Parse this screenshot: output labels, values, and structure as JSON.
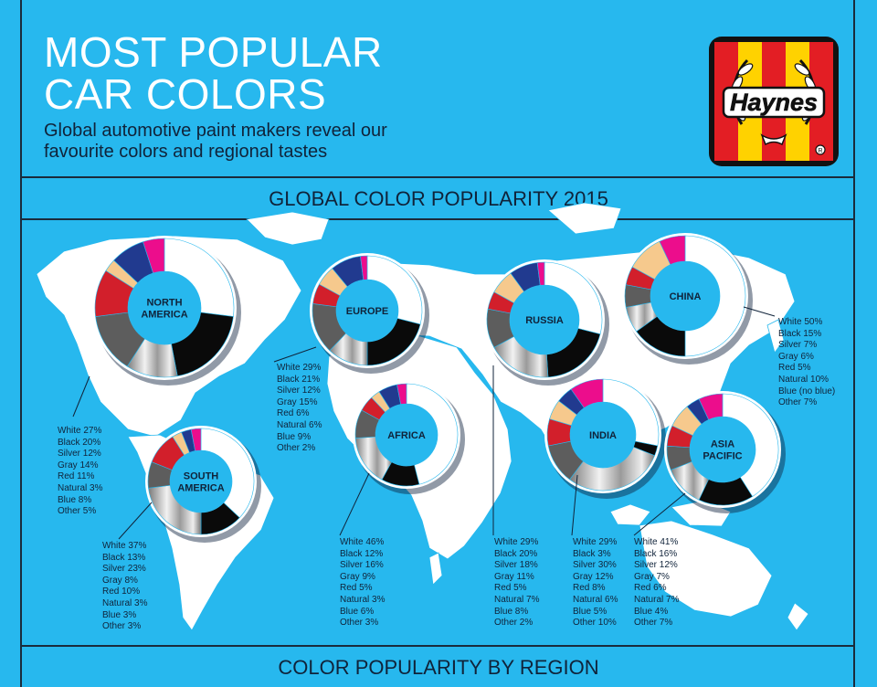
{
  "header": {
    "title_line1": "MOST POPULAR",
    "title_line2": "CAR COLORS",
    "subtitle_line1": "Global automotive paint makers reveal our",
    "subtitle_line2": "favourite colors and regional tastes",
    "logo_text": "Haynes"
  },
  "section1_title": "GLOBAL COLOR POPULARITY 2015",
  "section2_title": "COLOR POPULARITY BY REGION",
  "colors": {
    "background": "#27b8ee",
    "map_land": "#ffffff",
    "dark_text": "#10233a",
    "White": "#ffffff",
    "Black": "#0a0a0a",
    "Silver": "#c9c9c9",
    "Gray": "#5d5d5d",
    "Red": "#d21f2b",
    "Natural": "#f6c98d",
    "Blue": "#213a8f",
    "Other": "#ec0d8c"
  },
  "chart_data": [
    {
      "type": "pie",
      "region": "NORTH AMERICA",
      "categories": [
        "White",
        "Black",
        "Silver",
        "Gray",
        "Red",
        "Natural",
        "Blue",
        "Other"
      ],
      "values": [
        27,
        20,
        12,
        14,
        11,
        3,
        8,
        5
      ],
      "labels": [
        "White 27%",
        "Black 20%",
        "Silver 12%",
        "Gray 14%",
        "Red 11%",
        "Natural 3%",
        "Blue 8%",
        "Other 5%"
      ]
    },
    {
      "type": "pie",
      "region": "SOUTH AMERICA",
      "categories": [
        "White",
        "Black",
        "Silver",
        "Gray",
        "Red",
        "Natural",
        "Blue",
        "Other"
      ],
      "values": [
        37,
        13,
        23,
        8,
        10,
        3,
        3,
        3
      ],
      "labels": [
        "White 37%",
        "Black 13%",
        "Silver 23%",
        "Gray 8%",
        "Red 10%",
        "Natural 3%",
        "Blue 3%",
        "Other 3%"
      ]
    },
    {
      "type": "pie",
      "region": "EUROPE",
      "categories": [
        "White",
        "Black",
        "Silver",
        "Gray",
        "Red",
        "Natural",
        "Blue",
        "Other"
      ],
      "values": [
        29,
        21,
        12,
        15,
        6,
        6,
        9,
        2
      ],
      "labels": [
        "White 29%",
        "Black 21%",
        "Silver 12%",
        "Gray 15%",
        "Red 6%",
        "Natural 6%",
        "Blue 9%",
        "Other 2%"
      ]
    },
    {
      "type": "pie",
      "region": "AFRICA",
      "categories": [
        "White",
        "Black",
        "Silver",
        "Gray",
        "Red",
        "Natural",
        "Blue",
        "Other"
      ],
      "values": [
        46,
        12,
        16,
        9,
        5,
        3,
        6,
        3
      ],
      "labels": [
        "White 46%",
        "Black 12%",
        "Silver 16%",
        "Gray 9%",
        "Red 5%",
        "Natural 3%",
        "Blue 6%",
        "Other 3%"
      ]
    },
    {
      "type": "pie",
      "region": "RUSSIA",
      "categories": [
        "White",
        "Black",
        "Silver",
        "Gray",
        "Red",
        "Natural",
        "Blue",
        "Other"
      ],
      "values": [
        29,
        20,
        18,
        11,
        5,
        7,
        8,
        2
      ],
      "labels": [
        "White 29%",
        "Black 20%",
        "Silver 18%",
        "Gray 11%",
        "Red 5%",
        "Natural 7%",
        "Blue 8%",
        "Other 2%"
      ]
    },
    {
      "type": "pie",
      "region": "CHINA",
      "categories": [
        "White",
        "Black",
        "Silver",
        "Gray",
        "Red",
        "Natural",
        "Blue",
        "Other"
      ],
      "values": [
        50,
        15,
        7,
        6,
        5,
        10,
        0,
        7
      ],
      "labels": [
        "White 50%",
        "Black 15%",
        "Silver 7%",
        "Gray 6%",
        "Red 5%",
        "Natural 10%",
        "Blue (no blue)",
        "Other 7%"
      ]
    },
    {
      "type": "pie",
      "region": "INDIA",
      "categories": [
        "White",
        "Black",
        "Silver",
        "Gray",
        "Red",
        "Natural",
        "Blue",
        "Other"
      ],
      "values": [
        29,
        3,
        30,
        12,
        8,
        6,
        5,
        10
      ],
      "labels": [
        "White 29%",
        "Black 3%",
        "Silver 30%",
        "Gray 12%",
        "Red 8%",
        "Natural 6%",
        "Blue 5%",
        "Other 10%"
      ]
    },
    {
      "type": "pie",
      "region": "ASIA PACIFIC",
      "categories": [
        "White",
        "Black",
        "Silver",
        "Gray",
        "Red",
        "Natural",
        "Blue",
        "Other"
      ],
      "values": [
        41,
        16,
        12,
        7,
        6,
        7,
        4,
        7
      ],
      "labels": [
        "White 41%",
        "Black 16%",
        "Silver 12%",
        "Gray 7%",
        "Red 6%",
        "Natural 7%",
        "Blue 4%",
        "Other 7%"
      ]
    }
  ]
}
